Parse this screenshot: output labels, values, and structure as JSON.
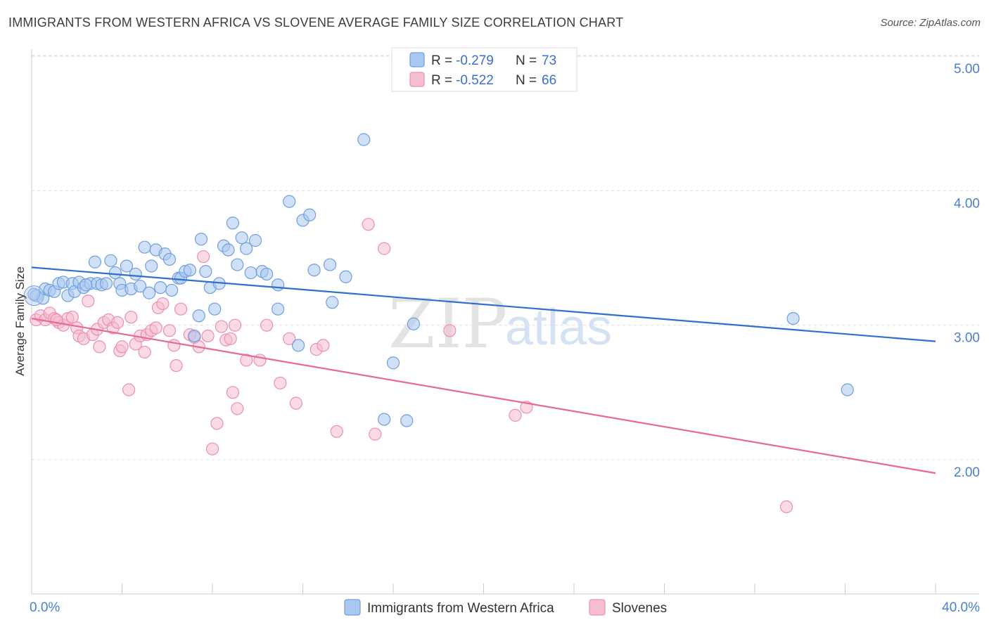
{
  "header": {
    "title": "IMMIGRANTS FROM WESTERN AFRICA VS SLOVENE AVERAGE FAMILY SIZE CORRELATION CHART",
    "source": "Source: ZipAtlas.com"
  },
  "watermark": {
    "zip": "ZIP",
    "atlas": "atlas"
  },
  "legend": {
    "r_label": "R =",
    "n_label": "N =",
    "items": [
      {
        "name": "Immigrants from Western Africa",
        "r": "-0.279",
        "n": "73"
      },
      {
        "name": "Slovenes",
        "r": "-0.522",
        "n": "66"
      }
    ]
  },
  "colors": {
    "blue_fill": "#a9c8f0",
    "blue_stroke": "#6f9ee0",
    "blue_line": "#2f6fce",
    "pink_fill": "#f6bcd0",
    "pink_stroke": "#ec8fb0",
    "pink_line": "#e8679a",
    "axis_label": "#4a7fd0",
    "grid": "#dddddd"
  },
  "chart_data": {
    "type": "scatter",
    "title": "IMMIGRANTS FROM WESTERN AFRICA VS SLOVENE AVERAGE FAMILY SIZE CORRELATION CHART",
    "xlabel": "",
    "ylabel": "Average Family Size",
    "xlim": [
      0,
      40
    ],
    "ylim": [
      1.0,
      5.15
    ],
    "x_tick_labels": [
      "0.0%",
      "40.0%"
    ],
    "y_ticks": [
      2.0,
      3.0,
      4.0,
      5.0
    ],
    "y_tick_labels": [
      "2.00",
      "3.00",
      "4.00",
      "5.00"
    ],
    "grid": true,
    "legend_position": "top-center",
    "series": [
      {
        "name": "Immigrants from Western Africa",
        "color": "blue",
        "r": -0.279,
        "n": 73,
        "trend": {
          "x": [
            0,
            40
          ],
          "y": [
            3.43,
            2.88
          ]
        },
        "points": [
          [
            0.2,
            3.22
          ],
          [
            0.5,
            3.2
          ],
          [
            0.6,
            3.27
          ],
          [
            0.8,
            3.26
          ],
          [
            1.0,
            3.25
          ],
          [
            1.2,
            3.31
          ],
          [
            1.4,
            3.32
          ],
          [
            1.6,
            3.22
          ],
          [
            1.8,
            3.31
          ],
          [
            1.9,
            3.25
          ],
          [
            2.1,
            3.32
          ],
          [
            2.3,
            3.28
          ],
          [
            2.6,
            3.31
          ],
          [
            2.8,
            3.47
          ],
          [
            2.9,
            3.31
          ],
          [
            3.1,
            3.3
          ],
          [
            3.3,
            3.31
          ],
          [
            3.5,
            3.48
          ],
          [
            3.7,
            3.39
          ],
          [
            3.9,
            3.31
          ],
          [
            4.0,
            3.26
          ],
          [
            4.2,
            3.44
          ],
          [
            4.4,
            3.27
          ],
          [
            4.6,
            3.38
          ],
          [
            4.8,
            3.29
          ],
          [
            5.0,
            3.58
          ],
          [
            5.2,
            3.24
          ],
          [
            5.3,
            3.44
          ],
          [
            5.5,
            3.56
          ],
          [
            5.7,
            3.28
          ],
          [
            5.9,
            3.53
          ],
          [
            6.1,
            3.49
          ],
          [
            6.2,
            3.26
          ],
          [
            6.5,
            3.35
          ],
          [
            6.6,
            3.35
          ],
          [
            6.8,
            3.4
          ],
          [
            7.0,
            3.41
          ],
          [
            7.2,
            2.92
          ],
          [
            7.4,
            3.07
          ],
          [
            7.5,
            3.64
          ],
          [
            7.7,
            3.4
          ],
          [
            7.9,
            3.28
          ],
          [
            8.1,
            3.12
          ],
          [
            8.3,
            3.31
          ],
          [
            8.5,
            3.59
          ],
          [
            8.7,
            3.56
          ],
          [
            8.9,
            3.76
          ],
          [
            9.1,
            3.45
          ],
          [
            9.3,
            3.65
          ],
          [
            9.5,
            3.57
          ],
          [
            9.7,
            3.39
          ],
          [
            9.9,
            3.63
          ],
          [
            10.2,
            3.4
          ],
          [
            10.4,
            3.38
          ],
          [
            10.9,
            3.3
          ],
          [
            10.9,
            3.12
          ],
          [
            11.4,
            3.92
          ],
          [
            11.8,
            2.85
          ],
          [
            12.0,
            3.78
          ],
          [
            12.3,
            3.82
          ],
          [
            12.5,
            3.41
          ],
          [
            13.2,
            3.45
          ],
          [
            13.3,
            3.17
          ],
          [
            13.9,
            3.36
          ],
          [
            14.7,
            4.38
          ],
          [
            15.6,
            2.3
          ],
          [
            16.0,
            2.72
          ],
          [
            16.6,
            2.29
          ],
          [
            16.9,
            3.01
          ],
          [
            33.7,
            3.05
          ],
          [
            36.1,
            2.52
          ],
          [
            0.1,
            3.23
          ],
          [
            2.4,
            3.3
          ]
        ]
      },
      {
        "name": "Slovenes",
        "color": "pink",
        "r": -0.522,
        "n": 66,
        "trend": {
          "x": [
            0,
            40
          ],
          "y": [
            3.05,
            1.9
          ]
        },
        "points": [
          [
            0.2,
            3.04
          ],
          [
            0.4,
            3.07
          ],
          [
            0.6,
            3.04
          ],
          [
            0.8,
            3.09
          ],
          [
            1.0,
            3.05
          ],
          [
            1.2,
            3.02
          ],
          [
            1.4,
            3.0
          ],
          [
            1.6,
            3.05
          ],
          [
            1.8,
            3.06
          ],
          [
            2.0,
            2.98
          ],
          [
            2.1,
            2.92
          ],
          [
            2.3,
            2.9
          ],
          [
            2.5,
            3.18
          ],
          [
            2.7,
            2.93
          ],
          [
            2.9,
            2.97
          ],
          [
            3.0,
            2.84
          ],
          [
            3.2,
            3.02
          ],
          [
            3.4,
            3.04
          ],
          [
            3.6,
            2.98
          ],
          [
            3.8,
            3.02
          ],
          [
            3.9,
            2.81
          ],
          [
            4.0,
            2.84
          ],
          [
            4.3,
            2.52
          ],
          [
            4.4,
            3.06
          ],
          [
            4.6,
            2.86
          ],
          [
            4.8,
            2.92
          ],
          [
            5.1,
            2.93
          ],
          [
            5.3,
            2.96
          ],
          [
            5.5,
            2.98
          ],
          [
            5.6,
            3.13
          ],
          [
            5.8,
            3.16
          ],
          [
            6.1,
            2.96
          ],
          [
            6.3,
            2.85
          ],
          [
            6.4,
            2.7
          ],
          [
            7.0,
            2.93
          ],
          [
            7.2,
            2.91
          ],
          [
            7.4,
            2.84
          ],
          [
            7.6,
            3.51
          ],
          [
            7.8,
            2.92
          ],
          [
            8.0,
            2.08
          ],
          [
            8.2,
            2.27
          ],
          [
            8.4,
            2.99
          ],
          [
            8.6,
            2.89
          ],
          [
            8.8,
            2.9
          ],
          [
            8.9,
            2.5
          ],
          [
            9.1,
            2.38
          ],
          [
            9.5,
            2.74
          ],
          [
            10.1,
            2.74
          ],
          [
            10.4,
            3.0
          ],
          [
            11.0,
            2.57
          ],
          [
            11.4,
            2.9
          ],
          [
            11.7,
            2.42
          ],
          [
            12.6,
            2.82
          ],
          [
            12.9,
            2.85
          ],
          [
            13.5,
            2.21
          ],
          [
            14.9,
            3.75
          ],
          [
            15.2,
            2.19
          ],
          [
            15.6,
            3.57
          ],
          [
            18.5,
            2.96
          ],
          [
            21.4,
            2.33
          ],
          [
            21.9,
            2.39
          ],
          [
            33.4,
            1.65
          ],
          [
            1.1,
            3.04
          ],
          [
            5.0,
            2.8
          ],
          [
            6.6,
            3.12
          ],
          [
            9.0,
            3.0
          ]
        ]
      }
    ]
  }
}
